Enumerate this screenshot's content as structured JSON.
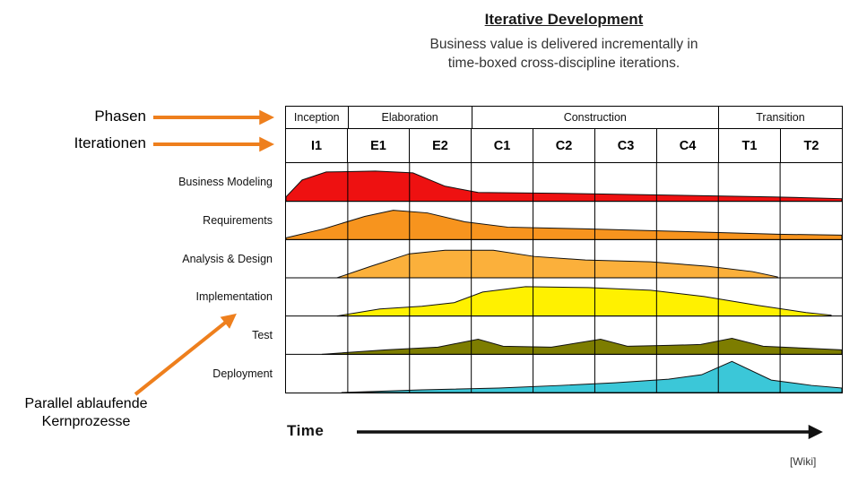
{
  "title": "Iterative Development",
  "subtitle": [
    "Business value is delivered incrementally in",
    "time-boxed cross-discipline iterations."
  ],
  "annotations": {
    "phasen_label": "Phasen",
    "iterationen_label": "Iterationen",
    "parallel_label_line1": "Parallel ablaufende",
    "parallel_label_line2": "Kernprozesse",
    "arrow_color": "#EE7F1D"
  },
  "time_label": "Time",
  "citation": "[Wiki]",
  "chart_data": {
    "type": "area",
    "title": "Iterative Development",
    "x_axis_label": "Time",
    "phases": [
      {
        "label": "Inception",
        "iterations": [
          "I1"
        ]
      },
      {
        "label": "Elaboration",
        "iterations": [
          "E1",
          "E2"
        ]
      },
      {
        "label": "Construction",
        "iterations": [
          "C1",
          "C2",
          "C3",
          "C4"
        ]
      },
      {
        "label": "Transition",
        "iterations": [
          "T1",
          "T2"
        ]
      }
    ],
    "iterations": [
      "I1",
      "E1",
      "E2",
      "C1",
      "C2",
      "C3",
      "C4",
      "T1",
      "T2"
    ],
    "disciplines": [
      {
        "label": "Business Modeling",
        "color": "#EE1111",
        "profile": [
          [
            0,
            5
          ],
          [
            18,
            24
          ],
          [
            45,
            33
          ],
          [
            100,
            34
          ],
          [
            142,
            32
          ],
          [
            178,
            17
          ],
          [
            215,
            10
          ],
          [
            310,
            9
          ],
          [
            430,
            7
          ],
          [
            545,
            5
          ],
          [
            622,
            3
          ]
        ]
      },
      {
        "label": "Requirements",
        "color": "#F7941E",
        "profile": [
          [
            0,
            2
          ],
          [
            42,
            12
          ],
          [
            88,
            26
          ],
          [
            120,
            33
          ],
          [
            158,
            30
          ],
          [
            200,
            20
          ],
          [
            248,
            14
          ],
          [
            335,
            12
          ],
          [
            445,
            9
          ],
          [
            550,
            6
          ],
          [
            622,
            5
          ]
        ]
      },
      {
        "label": "Analysis & Design",
        "color": "#FBB03B",
        "profile": [
          [
            57,
            0
          ],
          [
            95,
            13
          ],
          [
            138,
            27
          ],
          [
            178,
            31
          ],
          [
            232,
            31
          ],
          [
            278,
            24
          ],
          [
            335,
            20
          ],
          [
            408,
            18
          ],
          [
            472,
            13
          ],
          [
            522,
            7
          ],
          [
            550,
            1
          ]
        ]
      },
      {
        "label": "Implementation",
        "color": "#FFF100",
        "profile": [
          [
            57,
            0
          ],
          [
            105,
            8
          ],
          [
            152,
            11
          ],
          [
            188,
            15
          ],
          [
            220,
            27
          ],
          [
            268,
            33
          ],
          [
            338,
            32
          ],
          [
            408,
            29
          ],
          [
            468,
            22
          ],
          [
            528,
            12
          ],
          [
            582,
            4
          ],
          [
            610,
            1
          ]
        ]
      },
      {
        "label": "Test",
        "color": "#7D7D00",
        "profile": [
          [
            40,
            0
          ],
          [
            112,
            5
          ],
          [
            170,
            8
          ],
          [
            215,
            17
          ],
          [
            243,
            9
          ],
          [
            297,
            8
          ],
          [
            352,
            17
          ],
          [
            382,
            9
          ],
          [
            428,
            10
          ],
          [
            464,
            11
          ],
          [
            499,
            18
          ],
          [
            534,
            9
          ],
          [
            578,
            7
          ],
          [
            622,
            5
          ]
        ]
      },
      {
        "label": "Deployment",
        "color": "#3BC7D8",
        "profile": [
          [
            62,
            0
          ],
          [
            152,
            3
          ],
          [
            238,
            5
          ],
          [
            308,
            8
          ],
          [
            368,
            11
          ],
          [
            428,
            15
          ],
          [
            465,
            20
          ],
          [
            499,
            35
          ],
          [
            543,
            14
          ],
          [
            588,
            8
          ],
          [
            622,
            5
          ]
        ]
      }
    ]
  }
}
